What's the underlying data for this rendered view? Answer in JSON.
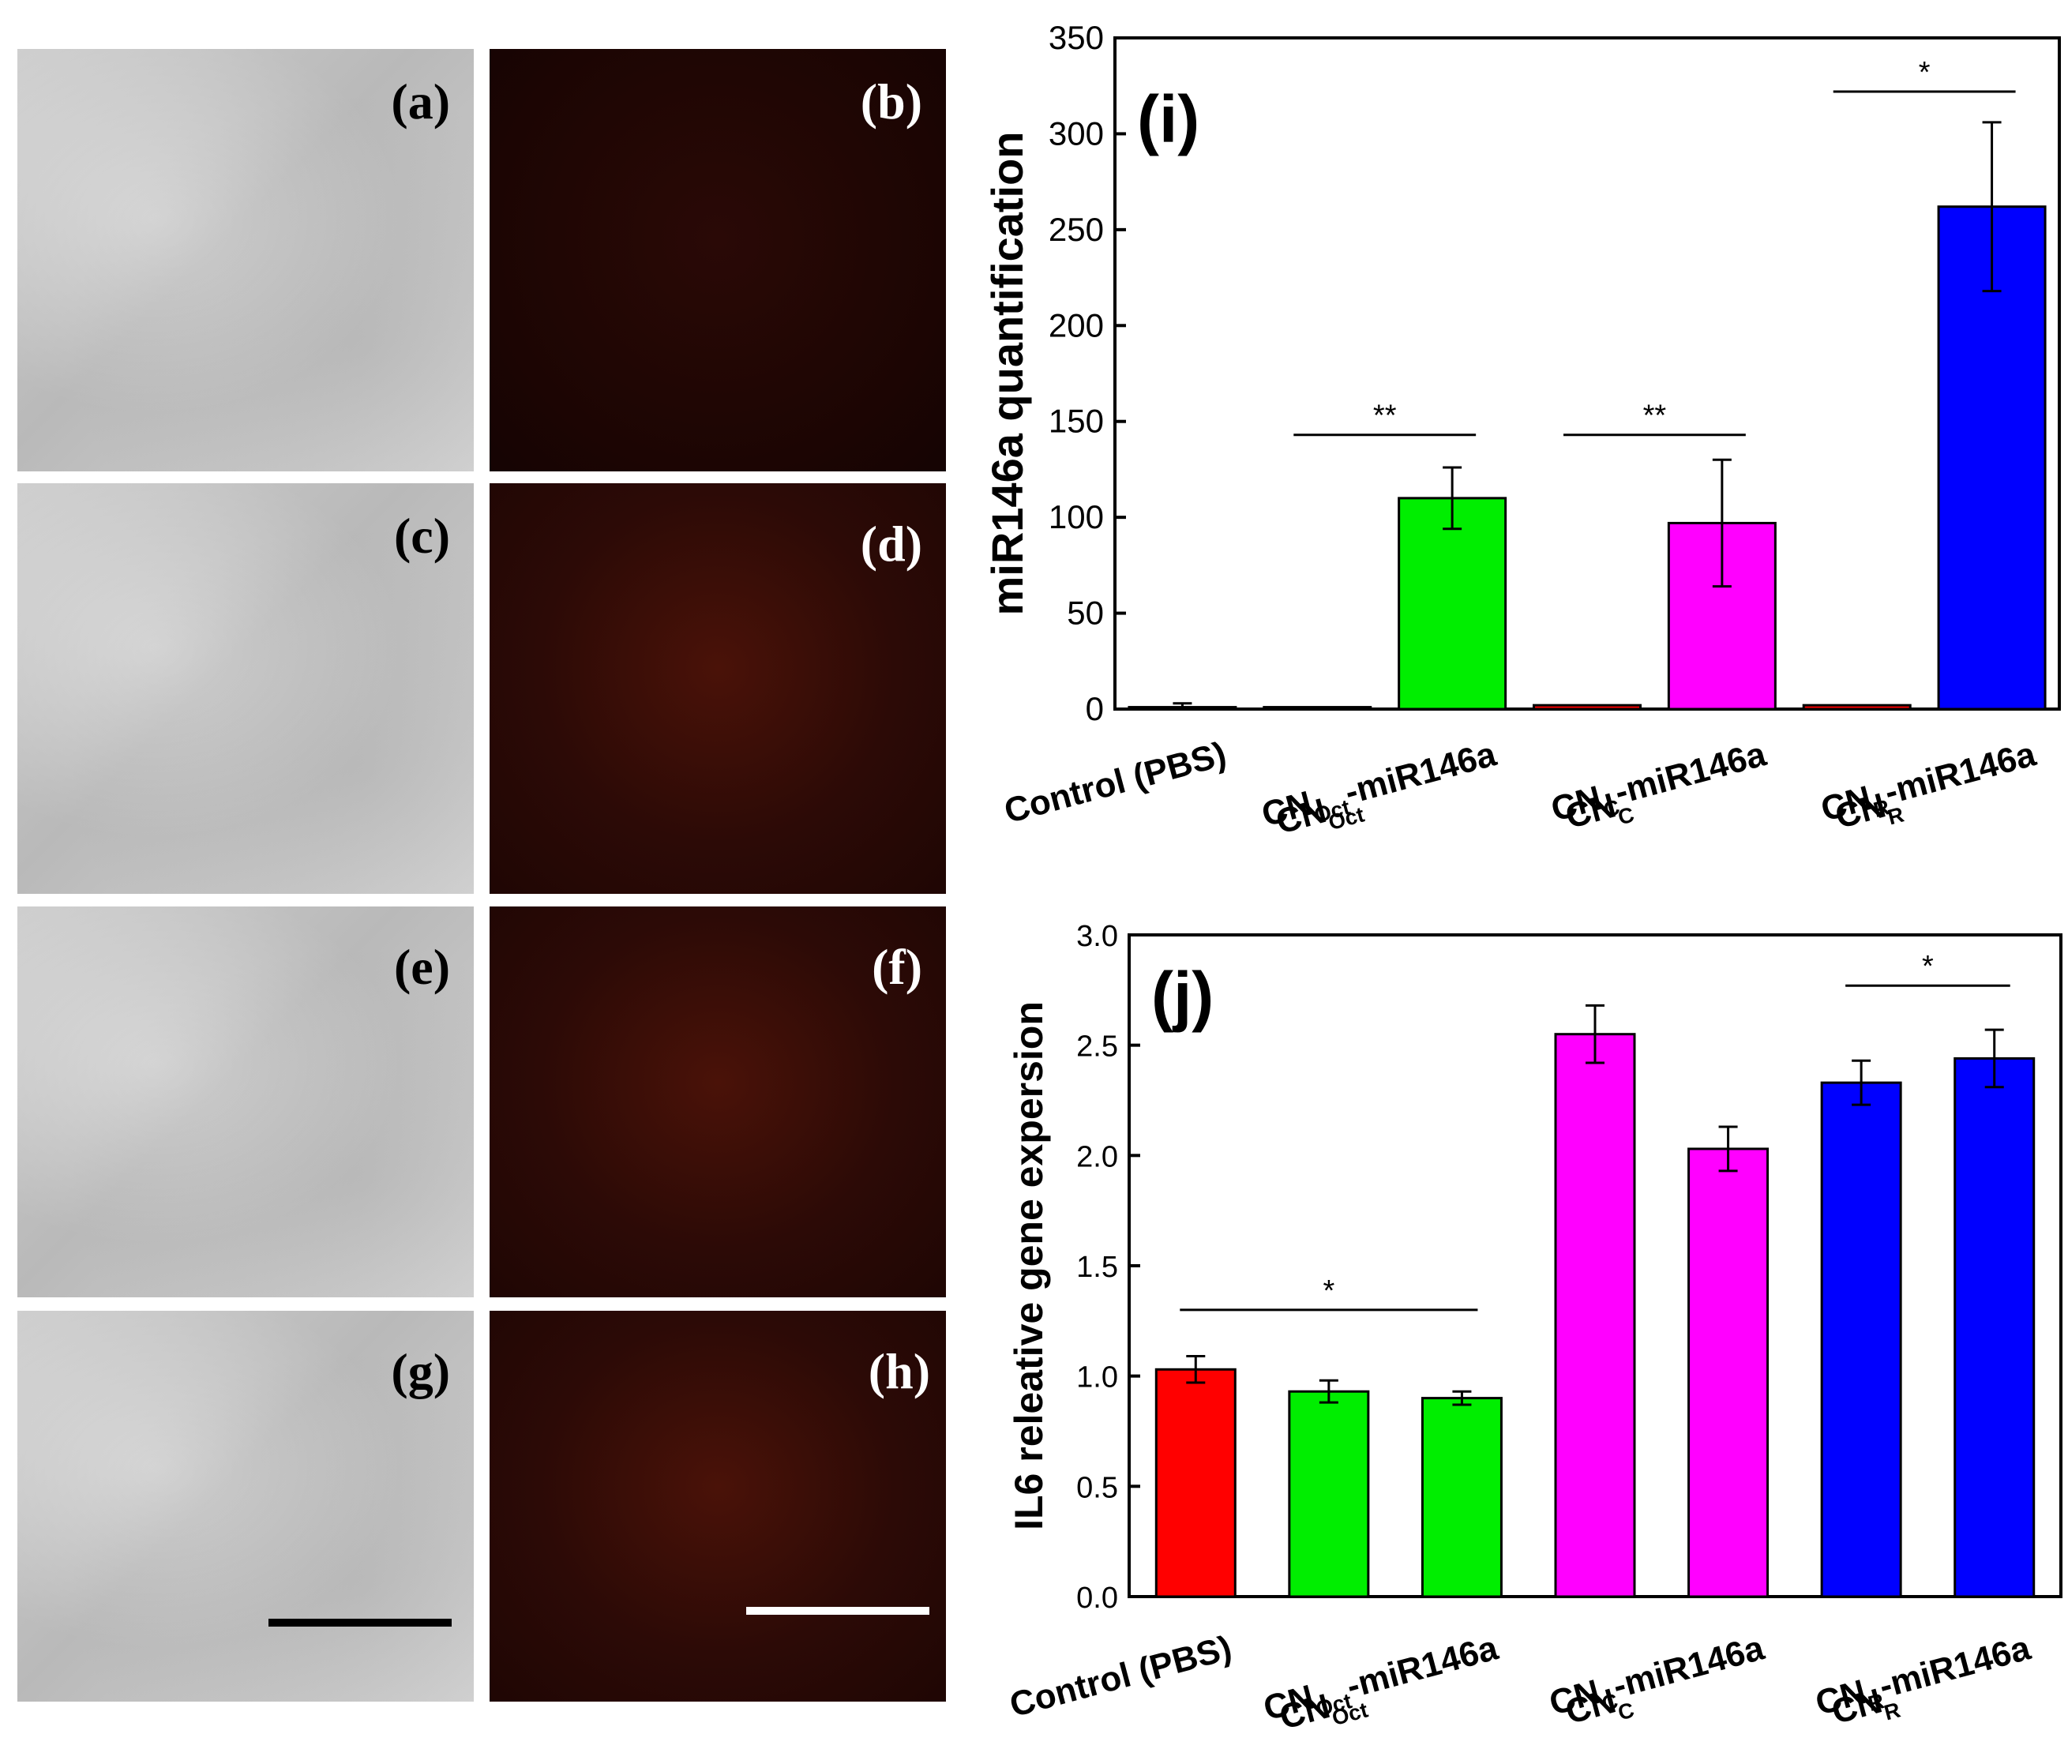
{
  "image_panels": [
    {
      "id": "a",
      "label": "(a)",
      "kind": "brightfield"
    },
    {
      "id": "b",
      "label": "(b)",
      "kind": "fluorescence"
    },
    {
      "id": "c",
      "label": "(c)",
      "kind": "brightfield"
    },
    {
      "id": "d",
      "label": "(d)",
      "kind": "fluorescence"
    },
    {
      "id": "e",
      "label": "(e)",
      "kind": "brightfield"
    },
    {
      "id": "f",
      "label": "(f)",
      "kind": "fluorescence"
    },
    {
      "id": "g",
      "label": "(g)",
      "kind": "brightfield"
    },
    {
      "id": "h",
      "label": "(h)",
      "kind": "fluorescence"
    }
  ],
  "colors": {
    "red": "#ff0000",
    "green": "#00ee00",
    "magenta": "#ff00ff",
    "blue": "#0000ff"
  },
  "chart_data": [
    {
      "type": "bar",
      "panel_label": "(i)",
      "ylabel": "miR146a quantification",
      "ylim": [
        0,
        350
      ],
      "yticks": [
        0,
        50,
        100,
        150,
        200,
        250,
        300,
        350
      ],
      "categories": [
        {
          "main": "Control (PBS)",
          "sub": "",
          "suffix": ""
        },
        {
          "main": "CN",
          "sub": "Oct",
          "suffix": ""
        },
        {
          "main": "CN",
          "sub": "Oct",
          "suffix": "-miR146a"
        },
        {
          "main": "CN",
          "sub": "C",
          "suffix": ""
        },
        {
          "main": "CN",
          "sub": "C",
          "suffix": "-miR146a"
        },
        {
          "main": "CN",
          "sub": "R",
          "suffix": ""
        },
        {
          "main": "CN",
          "sub": "R",
          "suffix": "-miR146a"
        }
      ],
      "values": [
        1,
        1,
        110,
        2,
        97,
        2,
        262
      ],
      "errors": [
        2,
        0,
        16,
        0,
        33,
        0,
        44
      ],
      "bar_colors": [
        "red",
        "red",
        "green",
        "red",
        "magenta",
        "red",
        "blue"
      ],
      "significance": [
        {
          "from": 1,
          "to": 2,
          "label": "**",
          "y": 143
        },
        {
          "from": 3,
          "to": 4,
          "label": "**",
          "y": 143
        },
        {
          "from": 5,
          "to": 6,
          "label": "*",
          "y": 322
        }
      ]
    },
    {
      "type": "bar",
      "panel_label": "(j)",
      "ylabel": "IL6 releative gene expersion",
      "ylim": [
        0,
        3.0
      ],
      "yticks": [
        0.0,
        0.5,
        1.0,
        1.5,
        2.0,
        2.5,
        3.0
      ],
      "categories": [
        {
          "main": "Control (PBS)",
          "sub": "",
          "suffix": ""
        },
        {
          "main": "CN",
          "sub": "Oct",
          "suffix": ""
        },
        {
          "main": "CN",
          "sub": "Oct",
          "suffix": "-miR146a"
        },
        {
          "main": "CN",
          "sub": "C",
          "suffix": ""
        },
        {
          "main": "CN",
          "sub": "C",
          "suffix": "-miR146a"
        },
        {
          "main": "CN",
          "sub": "R",
          "suffix": ""
        },
        {
          "main": "CN",
          "sub": "R",
          "suffix": "-miR146a"
        }
      ],
      "values": [
        1.03,
        0.93,
        0.9,
        2.55,
        2.03,
        2.33,
        2.44
      ],
      "errors": [
        0.06,
        0.05,
        0.03,
        0.13,
        0.1,
        0.1,
        0.13
      ],
      "bar_colors": [
        "red",
        "green",
        "green",
        "magenta",
        "magenta",
        "blue",
        "blue"
      ],
      "significance": [
        {
          "from": 0,
          "to": 2,
          "label": "*",
          "y": 1.3
        },
        {
          "from": 5,
          "to": 6,
          "label": "*",
          "y": 2.77
        }
      ]
    }
  ]
}
